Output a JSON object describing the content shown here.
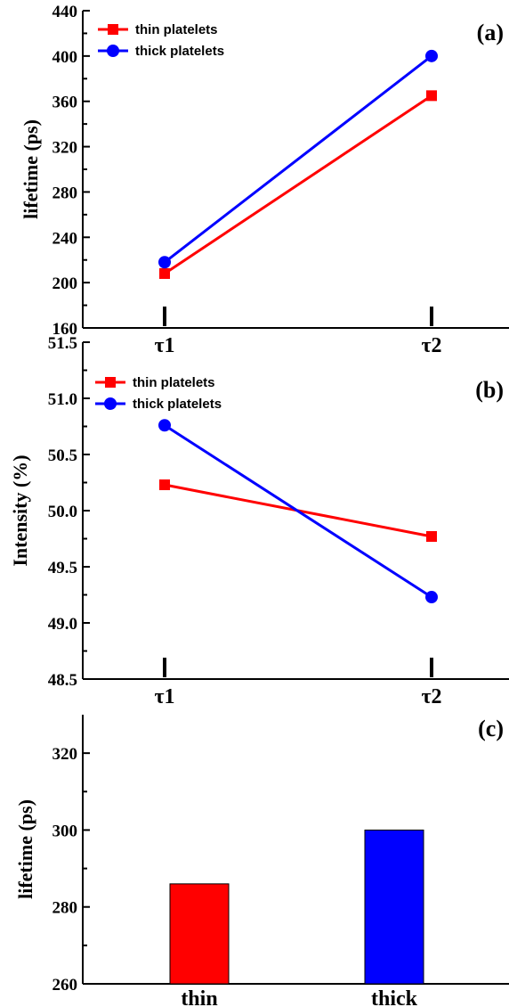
{
  "chart_data": [
    {
      "type": "line",
      "panel_label": "(a)",
      "ylabel": "lifetime (ps)",
      "categories": [
        "τ1",
        "τ2"
      ],
      "ylim": [
        160,
        440
      ],
      "yticks": [
        160,
        200,
        240,
        280,
        320,
        360,
        400,
        440
      ],
      "legend_position": "top-left",
      "grid": false,
      "series": [
        {
          "name": "thin platelets",
          "values": [
            208,
            365
          ],
          "color": "#ff0000",
          "marker": "square"
        },
        {
          "name": "thick platelets",
          "values": [
            218,
            400
          ],
          "color": "#0000ff",
          "marker": "circle"
        }
      ]
    },
    {
      "type": "line",
      "panel_label": "(b)",
      "ylabel": "Intensity (%)",
      "categories": [
        "τ1",
        "τ2"
      ],
      "ylim": [
        48.5,
        51.5
      ],
      "yticks": [
        "48.5",
        "49.0",
        "49.5",
        "50.0",
        "50.5",
        "51.0",
        "51.5"
      ],
      "legend_position": "top-left",
      "grid": false,
      "series": [
        {
          "name": "thin platelets",
          "values": [
            50.23,
            49.77
          ],
          "color": "#ff0000",
          "marker": "square"
        },
        {
          "name": "thick platelets",
          "values": [
            50.76,
            49.23
          ],
          "color": "#0000ff",
          "marker": "circle"
        }
      ]
    },
    {
      "type": "bar",
      "panel_label": "(c)",
      "ylabel": "lifetime (ps)",
      "categories": [
        "thin",
        "thick"
      ],
      "values": [
        286,
        300
      ],
      "colors": [
        "#ff0000",
        "#0000ff"
      ],
      "ylim": [
        260,
        330
      ],
      "yticks": [
        260,
        280,
        300,
        320
      ],
      "grid": false
    }
  ]
}
